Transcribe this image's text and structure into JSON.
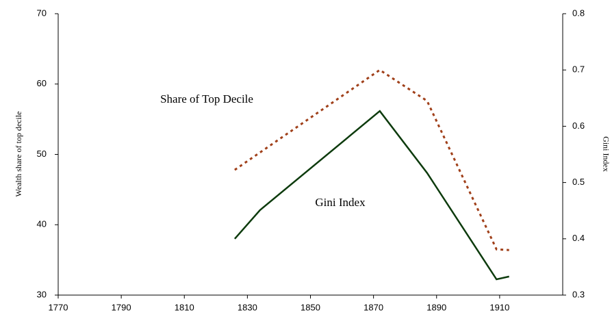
{
  "chart_data": {
    "type": "line",
    "ylabel": "Wealth share of top decile",
    "y2label": "Gini Index",
    "annotations": [
      "Share of Top Decile",
      "Gini Index"
    ],
    "xlim": [
      1770,
      1930
    ],
    "xticks": [
      1770,
      1790,
      1810,
      1830,
      1850,
      1870,
      1890,
      1910
    ],
    "ylim": [
      30,
      70
    ],
    "yticks": [
      30,
      40,
      50,
      60,
      70
    ],
    "y2lim": [
      0.3,
      0.8
    ],
    "y2ticks": [
      0.3,
      0.4,
      0.5,
      0.6,
      0.7,
      0.8
    ],
    "grid": false,
    "series": [
      {
        "name": "Share of Top Decile",
        "color": "#a0401a",
        "dash": true,
        "axis": "y",
        "x": [
          1826,
          1872,
          1887,
          1909,
          1913
        ],
        "values": [
          47.8,
          62.0,
          57.6,
          36.5,
          36.4
        ]
      },
      {
        "name": "Gini Index",
        "color": "#0d3b0d",
        "dash": false,
        "axis": "y2",
        "x": [
          1826,
          1834,
          1872,
          1887,
          1909,
          1913
        ],
        "values": [
          0.4,
          0.451,
          0.627,
          0.517,
          0.328,
          0.333
        ]
      }
    ]
  }
}
